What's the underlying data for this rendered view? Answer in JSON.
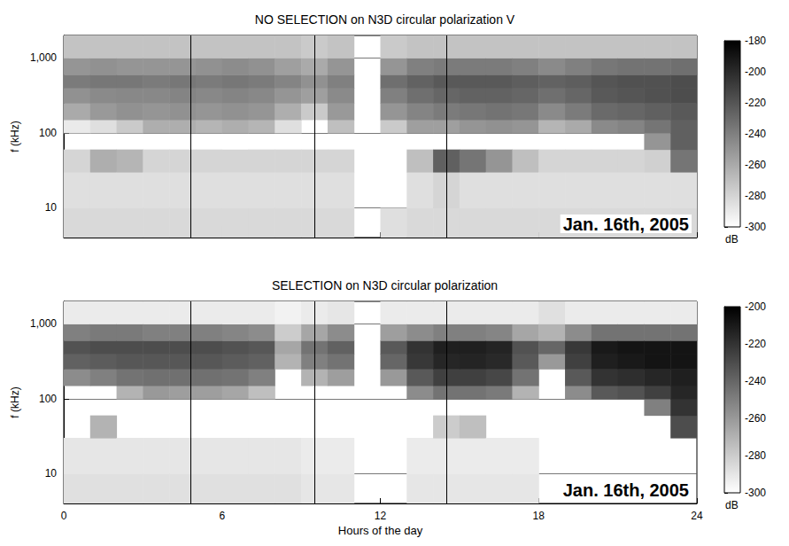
{
  "chart_data": [
    {
      "type": "heatmap",
      "title": "NO SELECTION on N3D circular polarization V",
      "ylabel": "f (kHz)",
      "xlim": [
        0,
        24
      ],
      "xticks": [
        0,
        6,
        12,
        18,
        24
      ],
      "ylim": [
        4,
        2000
      ],
      "yticks": [
        10,
        100,
        1000
      ],
      "log": "y",
      "grid": true,
      "tick_labels": "y",
      "annotation": "Jan. 16th, 2005",
      "vlines": [
        4.8,
        9.5,
        14.5
      ],
      "colorbar": {
        "range": [
          -300,
          -180
        ],
        "ticks": [
          -300,
          -280,
          -260,
          -240,
          -220,
          -200,
          -180
        ],
        "label": "dB"
      },
      "cells": {
        "x_edges": [
          0,
          1,
          2,
          3,
          4,
          5,
          6,
          7,
          8,
          9,
          10,
          11,
          12,
          13,
          14,
          15,
          16,
          17,
          18,
          19,
          20,
          21,
          22,
          23,
          24
        ],
        "y_edges": [
          4,
          10,
          30,
          60,
          100,
          150,
          250,
          400,
          600,
          1000,
          2000
        ],
        "values": [
          [
            -282,
            -285,
            -280,
            null,
            -290,
            -260,
            -248,
            -238,
            -250,
            -272
          ],
          [
            -282,
            -285,
            -262,
            null,
            -285,
            -252,
            -245,
            -236,
            -248,
            -272
          ],
          [
            -282,
            -285,
            -265,
            null,
            -275,
            -248,
            -244,
            -236,
            -250,
            -272
          ],
          [
            -282,
            -285,
            -280,
            null,
            -262,
            -250,
            -244,
            -238,
            -250,
            -272
          ],
          [
            -282,
            -285,
            -280,
            null,
            -262,
            -248,
            -242,
            -236,
            -250,
            -272
          ],
          [
            -282,
            -285,
            -280,
            null,
            -265,
            -250,
            -244,
            -238,
            -248,
            -272
          ],
          [
            -282,
            -285,
            -280,
            null,
            -262,
            -248,
            -242,
            -236,
            -246,
            -272
          ],
          [
            -282,
            -285,
            -280,
            null,
            -265,
            -250,
            -244,
            -238,
            -248,
            -272
          ],
          [
            -282,
            -285,
            -280,
            null,
            -285,
            -262,
            -250,
            -242,
            -255,
            -272
          ],
          [
            -282,
            -285,
            -280,
            null,
            null,
            -275,
            -255,
            -248,
            -260,
            -275
          ],
          [
            -282,
            -285,
            -280,
            null,
            -270,
            -252,
            -245,
            -240,
            -250,
            -272
          ],
          [
            null,
            null,
            null,
            null,
            null,
            null,
            null,
            null,
            null,
            null
          ],
          [
            -285,
            null,
            null,
            null,
            -275,
            -250,
            -240,
            -232,
            -250,
            -275
          ],
          [
            -282,
            -285,
            -270,
            null,
            -255,
            -242,
            -232,
            -226,
            -240,
            -272
          ],
          [
            -282,
            -280,
            -225,
            null,
            -255,
            -238,
            -228,
            -222,
            -238,
            -272
          ],
          [
            -282,
            -285,
            -235,
            null,
            -250,
            -236,
            -226,
            -222,
            -238,
            -272
          ],
          [
            -282,
            -285,
            -250,
            null,
            -248,
            -234,
            -226,
            -222,
            -238,
            -272
          ],
          [
            -282,
            -285,
            -270,
            null,
            -250,
            -236,
            -228,
            -224,
            -240,
            -272
          ],
          [
            -282,
            -285,
            -280,
            null,
            -265,
            -245,
            -232,
            -226,
            -245,
            -272
          ],
          [
            -282,
            -285,
            -280,
            null,
            -260,
            -238,
            -228,
            -224,
            -240,
            -272
          ],
          [
            -282,
            -285,
            -280,
            null,
            -245,
            -230,
            -222,
            -220,
            -236,
            -272
          ],
          [
            -282,
            -285,
            -280,
            null,
            -242,
            -228,
            -220,
            -218,
            -234,
            -272
          ],
          [
            -282,
            -285,
            -278,
            -250,
            -235,
            -225,
            -218,
            -218,
            -234,
            -272
          ],
          [
            -282,
            -285,
            -235,
            -225,
            -225,
            -222,
            -216,
            -216,
            -232,
            -272
          ]
        ]
      }
    },
    {
      "type": "heatmap",
      "title": "SELECTION on N3D circular polarization",
      "xlabel": "Hours of the day",
      "ylabel": "f (kHz)",
      "xlim": [
        0,
        24
      ],
      "xticks": [
        0,
        6,
        12,
        18,
        24
      ],
      "ylim": [
        4,
        2000
      ],
      "yticks": [
        10,
        100,
        1000
      ],
      "log": "y",
      "grid": true,
      "annotation": "Jan. 16th, 2005",
      "vlines": [
        4.8,
        9.5,
        14.5
      ],
      "colorbar": {
        "range": [
          -300,
          -200
        ],
        "ticks": [
          -300,
          -280,
          -260,
          -240,
          -220,
          -200
        ],
        "label": "dB"
      },
      "cells": {
        "x_edges": [
          0,
          1,
          2,
          3,
          4,
          5,
          6,
          7,
          8,
          9,
          10,
          11,
          12,
          13,
          14,
          15,
          16,
          17,
          18,
          19,
          20,
          21,
          22,
          23,
          24
        ],
        "y_edges": [
          4,
          10,
          30,
          60,
          100,
          150,
          250,
          400,
          600,
          1000,
          2000
        ],
        "values": [
          [
            -288,
            -290,
            null,
            null,
            null,
            -255,
            -238,
            -232,
            -250,
            -292
          ],
          [
            -288,
            -290,
            -270,
            null,
            null,
            -250,
            -236,
            -230,
            -248,
            -292
          ],
          [
            -288,
            -290,
            null,
            null,
            -270,
            -245,
            -234,
            -230,
            -248,
            -292
          ],
          [
            -288,
            -290,
            null,
            null,
            -260,
            -244,
            -234,
            -230,
            -250,
            -292
          ],
          [
            -288,
            -290,
            null,
            null,
            -262,
            -244,
            -234,
            -230,
            -250,
            -292
          ],
          [
            -288,
            -290,
            null,
            null,
            -262,
            -244,
            -234,
            -230,
            -250,
            -292
          ],
          [
            -288,
            -290,
            null,
            null,
            -265,
            -245,
            -236,
            -232,
            -252,
            -292
          ],
          [
            -288,
            -290,
            null,
            null,
            -275,
            -250,
            -238,
            -234,
            -255,
            -292
          ],
          [
            -288,
            -290,
            null,
            null,
            null,
            null,
            -270,
            -265,
            -280,
            -295
          ],
          [
            -290,
            -292,
            null,
            null,
            null,
            -270,
            -250,
            -245,
            -265,
            -292
          ],
          [
            -290,
            -292,
            null,
            null,
            null,
            -262,
            -245,
            -238,
            -255,
            -290
          ],
          [
            null,
            null,
            null,
            null,
            null,
            null,
            null,
            null,
            null,
            null
          ],
          [
            null,
            null,
            null,
            null,
            null,
            -260,
            -240,
            -235,
            -262,
            -292
          ],
          [
            -290,
            -292,
            null,
            null,
            -255,
            -235,
            -222,
            -220,
            -255,
            -292
          ],
          [
            -290,
            -292,
            -280,
            null,
            -245,
            -225,
            -215,
            -212,
            -250,
            -292
          ],
          [
            -290,
            -292,
            -275,
            null,
            -245,
            -225,
            -214,
            -212,
            -250,
            -292
          ],
          [
            -290,
            -292,
            null,
            null,
            -248,
            -228,
            -216,
            -214,
            -252,
            -292
          ],
          [
            -290,
            -292,
            null,
            null,
            -270,
            -245,
            -235,
            -232,
            -265,
            -292
          ],
          [
            null,
            null,
            null,
            null,
            null,
            null,
            -260,
            -240,
            -270,
            -288
          ],
          [
            null,
            null,
            null,
            null,
            -255,
            -235,
            -225,
            -222,
            -255,
            -292
          ],
          [
            null,
            null,
            null,
            null,
            -235,
            -220,
            -212,
            -210,
            -245,
            -292
          ],
          [
            null,
            null,
            null,
            null,
            -232,
            -218,
            -210,
            -208,
            -245,
            -292
          ],
          [
            null,
            null,
            null,
            -250,
            -225,
            -215,
            -208,
            -208,
            -245,
            -292
          ],
          [
            null,
            null,
            -230,
            -220,
            -215,
            -212,
            -208,
            -208,
            -245,
            -292
          ]
        ]
      }
    }
  ]
}
